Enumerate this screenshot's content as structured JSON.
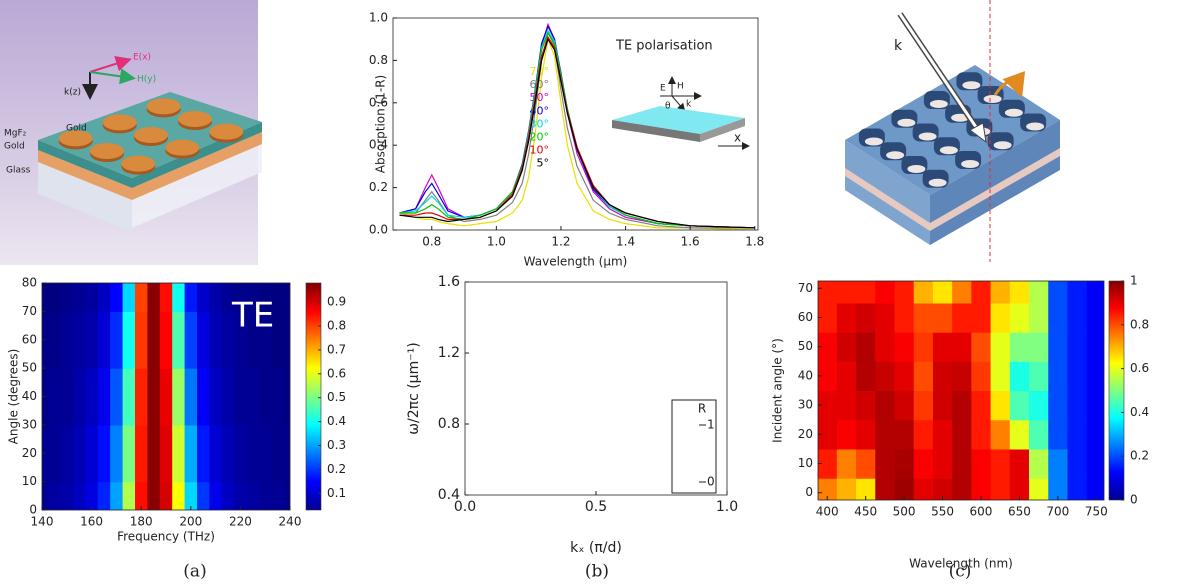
{
  "figure": {
    "panel_a_labels": {
      "e": "E(x)",
      "h": "H(y)",
      "k": "k(z)",
      "mgf2": "MgF₂",
      "gold_layer": "Gold",
      "gold_disc": "Gold",
      "glass": "Glass"
    },
    "panel_c_labels": {
      "k": "k"
    },
    "captions": [
      "(a)",
      "(b)",
      "(c)"
    ]
  },
  "chart_data": [
    {
      "type": "heatmap",
      "xlabel": "Frequency (THz)",
      "ylabel": "Angle (degrees)",
      "annotation": "TE",
      "x": [
        140,
        145,
        150,
        155,
        160,
        165,
        170,
        175,
        180,
        185,
        190,
        195,
        200,
        205,
        210,
        215,
        220,
        225,
        230,
        235,
        240
      ],
      "y": [
        0,
        20,
        40,
        60,
        80
      ],
      "z": [
        [
          0.05,
          0.06,
          0.07,
          0.09,
          0.12,
          0.18,
          0.3,
          0.55,
          0.85,
          0.97,
          0.9,
          0.62,
          0.35,
          0.2,
          0.13,
          0.09,
          0.07,
          0.06,
          0.05,
          0.05,
          0.04
        ],
        [
          0.05,
          0.05,
          0.06,
          0.08,
          0.11,
          0.16,
          0.27,
          0.5,
          0.84,
          0.97,
          0.89,
          0.58,
          0.31,
          0.17,
          0.11,
          0.08,
          0.06,
          0.05,
          0.05,
          0.04,
          0.04
        ],
        [
          0.04,
          0.05,
          0.05,
          0.07,
          0.09,
          0.13,
          0.23,
          0.45,
          0.83,
          0.97,
          0.88,
          0.53,
          0.26,
          0.14,
          0.09,
          0.07,
          0.05,
          0.05,
          0.04,
          0.04,
          0.03
        ],
        [
          0.04,
          0.04,
          0.05,
          0.06,
          0.07,
          0.11,
          0.19,
          0.4,
          0.81,
          0.97,
          0.86,
          0.46,
          0.21,
          0.12,
          0.08,
          0.06,
          0.05,
          0.04,
          0.04,
          0.03,
          0.03
        ],
        [
          0.03,
          0.03,
          0.04,
          0.05,
          0.06,
          0.09,
          0.15,
          0.35,
          0.8,
          0.97,
          0.85,
          0.4,
          0.17,
          0.1,
          0.07,
          0.05,
          0.04,
          0.04,
          0.03,
          0.03,
          0.03
        ]
      ],
      "xlim": [
        140,
        240
      ],
      "ylim": [
        0,
        80
      ],
      "xticks": [
        140,
        160,
        180,
        200,
        220,
        240
      ],
      "yticks": [
        0,
        10,
        20,
        30,
        40,
        50,
        60,
        70,
        80
      ],
      "colormap": "jet",
      "clim": [
        0.03,
        0.98
      ],
      "colorbar_ticks": [
        0.1,
        0.2,
        0.3,
        0.4,
        0.5,
        0.6,
        0.7,
        0.8,
        0.9
      ]
    },
    {
      "type": "line",
      "xlabel": "Wavelength (μm)",
      "ylabel": "Absorption (1-R)",
      "x": [
        0.7,
        0.75,
        0.78,
        0.8,
        0.82,
        0.85,
        0.9,
        0.95,
        1.0,
        1.05,
        1.08,
        1.1,
        1.12,
        1.14,
        1.16,
        1.18,
        1.2,
        1.22,
        1.25,
        1.3,
        1.35,
        1.4,
        1.5,
        1.6,
        1.8
      ],
      "series": [
        {
          "name": "70°",
          "color": "#e8e000",
          "values": [
            0.08,
            0.06,
            0.05,
            0.05,
            0.04,
            0.03,
            0.02,
            0.03,
            0.04,
            0.08,
            0.14,
            0.25,
            0.45,
            0.72,
            0.9,
            0.82,
            0.6,
            0.4,
            0.22,
            0.09,
            0.05,
            0.03,
            0.01,
            0.01,
            0.0
          ]
        },
        {
          "name": "60°",
          "color": "#808080",
          "values": [
            0.08,
            0.08,
            0.14,
            0.18,
            0.14,
            0.07,
            0.04,
            0.05,
            0.07,
            0.13,
            0.22,
            0.36,
            0.56,
            0.8,
            0.93,
            0.87,
            0.66,
            0.48,
            0.3,
            0.14,
            0.08,
            0.05,
            0.02,
            0.01,
            0.01
          ]
        },
        {
          "name": "50°",
          "color": "#d000d0",
          "values": [
            0.08,
            0.1,
            0.2,
            0.26,
            0.2,
            0.1,
            0.06,
            0.07,
            0.1,
            0.18,
            0.3,
            0.46,
            0.65,
            0.87,
            0.97,
            0.9,
            0.72,
            0.55,
            0.36,
            0.18,
            0.1,
            0.06,
            0.03,
            0.02,
            0.01
          ]
        },
        {
          "name": "40°",
          "color": "#0000e0",
          "values": [
            0.08,
            0.1,
            0.18,
            0.22,
            0.17,
            0.09,
            0.06,
            0.07,
            0.1,
            0.18,
            0.31,
            0.47,
            0.66,
            0.88,
            0.96,
            0.9,
            0.74,
            0.57,
            0.38,
            0.19,
            0.11,
            0.07,
            0.03,
            0.02,
            0.01
          ]
        },
        {
          "name": "30°",
          "color": "#00d8e8",
          "values": [
            0.08,
            0.09,
            0.13,
            0.16,
            0.13,
            0.07,
            0.06,
            0.07,
            0.1,
            0.18,
            0.3,
            0.46,
            0.65,
            0.86,
            0.94,
            0.89,
            0.73,
            0.57,
            0.38,
            0.2,
            0.11,
            0.07,
            0.03,
            0.02,
            0.01
          ]
        },
        {
          "name": "20°",
          "color": "#00c800",
          "values": [
            0.08,
            0.08,
            0.1,
            0.12,
            0.1,
            0.06,
            0.05,
            0.07,
            0.1,
            0.18,
            0.3,
            0.45,
            0.64,
            0.85,
            0.93,
            0.88,
            0.73,
            0.57,
            0.39,
            0.2,
            0.12,
            0.07,
            0.03,
            0.02,
            0.01
          ]
        },
        {
          "name": "10°",
          "color": "#e00000",
          "values": [
            0.07,
            0.07,
            0.08,
            0.08,
            0.07,
            0.05,
            0.05,
            0.06,
            0.09,
            0.17,
            0.29,
            0.44,
            0.62,
            0.82,
            0.91,
            0.86,
            0.71,
            0.56,
            0.39,
            0.21,
            0.12,
            0.08,
            0.04,
            0.02,
            0.01
          ]
        },
        {
          "name": "5°",
          "color": "#000000",
          "values": [
            0.07,
            0.06,
            0.06,
            0.06,
            0.05,
            0.04,
            0.05,
            0.06,
            0.09,
            0.16,
            0.28,
            0.42,
            0.6,
            0.8,
            0.9,
            0.85,
            0.7,
            0.55,
            0.38,
            0.2,
            0.12,
            0.08,
            0.04,
            0.02,
            0.01
          ]
        }
      ],
      "xlim": [
        0.68,
        1.81
      ],
      "ylim": [
        0,
        1.0
      ],
      "xticks": [
        0.8,
        {
          "value": 1,
          "label": "1.0"
        },
        1.2,
        1.4,
        1.6,
        1.8
      ],
      "yticks": [
        {
          "value": 0,
          "label": "0.0"
        },
        0.2,
        0.4,
        0.6,
        0.8,
        {
          "value": 1,
          "label": "1.0"
        }
      ],
      "inset": {
        "title": "TE polarisation",
        "e": "E",
        "h": "H",
        "k": "k",
        "theta": "θ",
        "x": "x"
      }
    },
    {
      "type": "line",
      "xlabel": "kₓ (π/d)",
      "ylabel": "ω/2πc (μm⁻¹)",
      "xlim": [
        0,
        1
      ],
      "ylim": [
        0.4,
        1.6
      ],
      "xticks": [
        {
          "value": 0,
          "label": "0.0"
        },
        0.5,
        {
          "value": 1,
          "label": "1.0"
        }
      ],
      "yticks": [
        0.4,
        0.8,
        1.2,
        1.6
      ],
      "colorbar": {
        "label": "R",
        "ticks": [
          1,
          0
        ]
      }
    },
    {
      "type": "heatmap",
      "xlabel": "Wavelength (nm)",
      "ylabel": "Incident angle (°)",
      "x": [
        400,
        425,
        450,
        475,
        500,
        525,
        550,
        575,
        600,
        625,
        650,
        675,
        700,
        725,
        750
      ],
      "y": [
        0,
        10,
        20,
        30,
        40,
        50,
        60,
        70
      ],
      "z": [
        [
          0.75,
          0.7,
          0.65,
          0.95,
          0.97,
          0.9,
          0.92,
          0.95,
          0.88,
          0.85,
          0.9,
          0.6,
          0.25,
          0.15,
          0.12
        ],
        [
          0.85,
          0.75,
          0.8,
          0.95,
          0.96,
          0.88,
          0.9,
          0.95,
          0.88,
          0.85,
          0.9,
          0.55,
          0.25,
          0.15,
          0.12
        ],
        [
          0.9,
          0.88,
          0.9,
          0.95,
          0.95,
          0.85,
          0.9,
          0.95,
          0.85,
          0.75,
          0.6,
          0.45,
          0.2,
          0.15,
          0.12
        ],
        [
          0.9,
          0.9,
          0.92,
          0.95,
          0.92,
          0.82,
          0.92,
          0.95,
          0.85,
          0.65,
          0.45,
          0.4,
          0.2,
          0.15,
          0.12
        ],
        [
          0.88,
          0.9,
          0.95,
          0.93,
          0.9,
          0.8,
          0.92,
          0.93,
          0.82,
          0.6,
          0.4,
          0.45,
          0.2,
          0.15,
          0.12
        ],
        [
          0.88,
          0.92,
          0.95,
          0.9,
          0.88,
          0.82,
          0.9,
          0.9,
          0.8,
          0.6,
          0.5,
          0.5,
          0.2,
          0.15,
          0.12
        ],
        [
          0.85,
          0.9,
          0.92,
          0.9,
          0.85,
          0.8,
          0.8,
          0.85,
          0.85,
          0.65,
          0.6,
          0.55,
          0.2,
          0.15,
          0.12
        ],
        [
          0.85,
          0.85,
          0.85,
          0.88,
          0.85,
          0.7,
          0.65,
          0.75,
          0.85,
          0.7,
          0.65,
          0.55,
          0.2,
          0.15,
          0.12
        ]
      ],
      "xlim": [
        388,
        760
      ],
      "ylim": [
        -2.5,
        72.5
      ],
      "xticks": [
        400,
        450,
        500,
        550,
        600,
        650,
        700,
        750
      ],
      "yticks": [
        0,
        10,
        20,
        30,
        40,
        50,
        60,
        70
      ],
      "colormap": "jet",
      "clim": [
        0,
        1
      ],
      "colorbar_ticks": [
        0,
        0.2,
        0.4,
        0.6,
        0.8,
        1
      ]
    }
  ]
}
